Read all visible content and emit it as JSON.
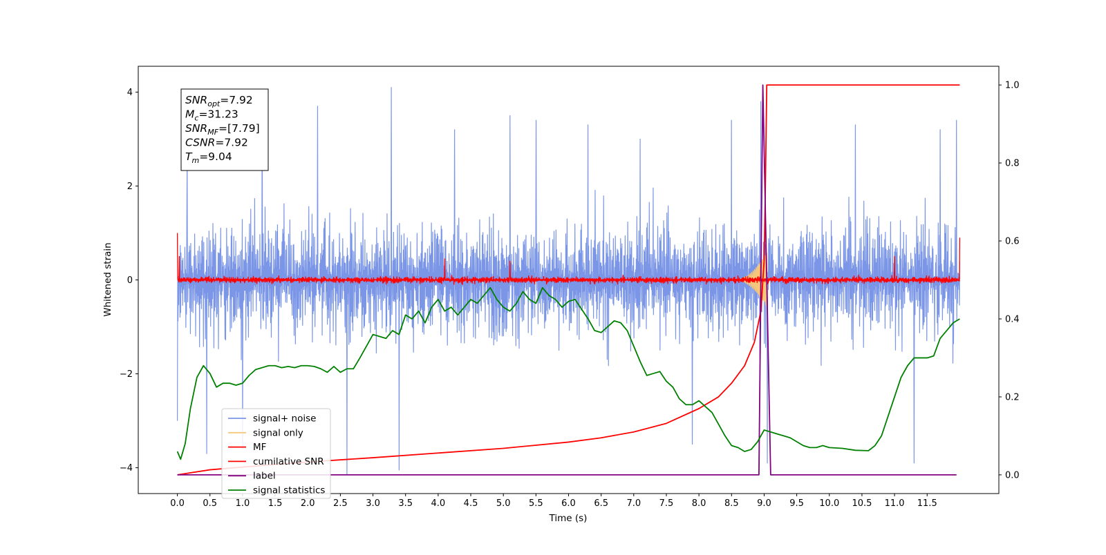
{
  "chart_data": {
    "type": "line",
    "title": "",
    "xlabel": "Time (s)",
    "ylabel": "Whitened strain",
    "ylabel_right": "",
    "xlim": [
      -0.6,
      12.6
    ],
    "ylim": [
      -4.55,
      4.55
    ],
    "ylim_right": [
      -0.048,
      1.048
    ],
    "x_ticks": [
      0.0,
      0.5,
      1.0,
      1.5,
      2.0,
      2.5,
      3.0,
      3.5,
      4.0,
      4.5,
      5.0,
      5.5,
      6.0,
      6.5,
      7.0,
      7.5,
      8.0,
      8.5,
      9.0,
      9.5,
      10.0,
      10.5,
      11.0,
      11.5
    ],
    "x_tick_labels": [
      "0.0",
      "0.5",
      "1.0",
      "1.5",
      "2.0",
      "2.5",
      "3.0",
      "3.5",
      "4.0",
      "4.5",
      "5.0",
      "5.5",
      "6.0",
      "6.5",
      "7.0",
      "7.5",
      "8.0",
      "8.5",
      "9.0",
      "9.5",
      "10.0",
      "10.5",
      "11.0",
      "11.5"
    ],
    "y_ticks": [
      -4,
      -2,
      0,
      2,
      4
    ],
    "y_tick_labels": [
      "−4",
      "−2",
      "0",
      "2",
      "4"
    ],
    "y_ticks_right": [
      0.0,
      0.2,
      0.4,
      0.6,
      0.8,
      1.0
    ],
    "y_tick_labels_right": [
      "0.0",
      "0.2",
      "0.4",
      "0.6",
      "0.8",
      "1.0"
    ],
    "grid": false,
    "legend_position": "lower-left",
    "annotation": [
      {
        "name": "SNR",
        "sub": "opt",
        "value": "=7.92"
      },
      {
        "name": "M",
        "sub": "c",
        "value": "=31.23"
      },
      {
        "name": "SNR",
        "sub": "MF",
        "value": "=[7.79]"
      },
      {
        "name": "CSNR",
        "sub": "",
        "value": "=7.92"
      },
      {
        "name": "T",
        "sub": "m",
        "value": "=9.04"
      }
    ],
    "series": [
      {
        "name": "signal+ noise",
        "axis": "left",
        "color": "#7b96e6",
        "kind": "noise",
        "x_range": [
          0.0,
          12.0
        ],
        "band": [
          -2.3,
          2.3
        ],
        "extremes": [
          [
            0.0,
            -3.0
          ],
          [
            0.15,
            2.6
          ],
          [
            0.45,
            -3.7
          ],
          [
            1.0,
            -3.6
          ],
          [
            1.3,
            3.8
          ],
          [
            2.15,
            3.7
          ],
          [
            2.6,
            -4.15
          ],
          [
            3.28,
            4.1
          ],
          [
            3.4,
            -4.05
          ],
          [
            4.25,
            3.2
          ],
          [
            5.1,
            3.5
          ],
          [
            5.5,
            3.4
          ],
          [
            6.3,
            3.3
          ],
          [
            7.1,
            3.0
          ],
          [
            7.9,
            -3.5
          ],
          [
            8.5,
            3.4
          ],
          [
            8.95,
            3.8
          ],
          [
            9.05,
            -3.9
          ],
          [
            10.4,
            3.3
          ],
          [
            11.3,
            -3.9
          ],
          [
            11.7,
            3.2
          ],
          [
            11.95,
            3.4
          ]
        ]
      },
      {
        "name": "signal only",
        "axis": "left",
        "color": "#f5c77a",
        "kind": "chirp",
        "x_range": [
          8.55,
          9.05
        ],
        "amplitude": 0.6
      },
      {
        "name": "MF",
        "axis": "left",
        "color": "#ff0000",
        "kind": "noise",
        "x_range": [
          0.0,
          12.0
        ],
        "band": [
          -0.12,
          0.12
        ],
        "extremes": [
          [
            0.0,
            1.0
          ],
          [
            0.03,
            0.5
          ],
          [
            4.1,
            0.45
          ],
          [
            5.1,
            0.4
          ],
          [
            11.0,
            0.5
          ],
          [
            12.0,
            0.9
          ],
          [
            8.95,
            0.4
          ]
        ]
      },
      {
        "name": "cumilative SNR",
        "axis": "right",
        "color": "#ff0000",
        "x": [
          0.0,
          0.5,
          1.0,
          2.0,
          3.0,
          4.0,
          5.0,
          6.0,
          6.5,
          7.0,
          7.5,
          8.0,
          8.3,
          8.5,
          8.7,
          8.85,
          8.95,
          9.0,
          9.02,
          9.04,
          9.06,
          9.1,
          10.0,
          11.0,
          12.0
        ],
        "y": [
          0.0,
          0.013,
          0.02,
          0.033,
          0.044,
          0.056,
          0.068,
          0.084,
          0.095,
          0.11,
          0.132,
          0.17,
          0.2,
          0.235,
          0.28,
          0.34,
          0.42,
          0.55,
          0.75,
          1.0,
          1.0,
          1.0,
          1.0,
          1.0,
          1.0
        ]
      },
      {
        "name": "label",
        "axis": "right",
        "color": "#800080",
        "x": [
          0.0,
          8.92,
          8.98,
          9.1,
          11.95
        ],
        "y": [
          0.0,
          0.0,
          1.0,
          0.0,
          0.0
        ]
      },
      {
        "name": "signal statistics",
        "axis": "right",
        "color": "#008000",
        "x": [
          0.0,
          0.05,
          0.12,
          0.2,
          0.3,
          0.4,
          0.5,
          0.6,
          0.7,
          0.8,
          0.9,
          1.0,
          1.1,
          1.2,
          1.3,
          1.4,
          1.5,
          1.6,
          1.7,
          1.8,
          1.9,
          2.0,
          2.1,
          2.2,
          2.3,
          2.4,
          2.5,
          2.6,
          2.7,
          2.8,
          2.9,
          3.0,
          3.1,
          3.2,
          3.3,
          3.4,
          3.5,
          3.6,
          3.7,
          3.8,
          3.9,
          4.0,
          4.1,
          4.2,
          4.3,
          4.4,
          4.5,
          4.6,
          4.7,
          4.8,
          4.9,
          5.0,
          5.1,
          5.2,
          5.3,
          5.4,
          5.5,
          5.6,
          5.7,
          5.8,
          5.9,
          6.0,
          6.1,
          6.2,
          6.3,
          6.4,
          6.5,
          6.6,
          6.7,
          6.8,
          6.9,
          7.0,
          7.1,
          7.2,
          7.3,
          7.4,
          7.5,
          7.6,
          7.7,
          7.8,
          7.9,
          8.0,
          8.1,
          8.2,
          8.3,
          8.4,
          8.5,
          8.6,
          8.7,
          8.8,
          8.9,
          9.0,
          9.1,
          9.2,
          9.3,
          9.4,
          9.5,
          9.6,
          9.7,
          9.8,
          9.9,
          10.0,
          10.2,
          10.4,
          10.6,
          10.7,
          10.8,
          10.9,
          11.0,
          11.1,
          11.2,
          11.3,
          11.4,
          11.5,
          11.6,
          11.7,
          11.8,
          11.9,
          12.0
        ],
        "y": [
          0.06,
          0.04,
          0.08,
          0.17,
          0.25,
          0.28,
          0.26,
          0.225,
          0.235,
          0.235,
          0.23,
          0.235,
          0.255,
          0.27,
          0.275,
          0.28,
          0.28,
          0.275,
          0.278,
          0.275,
          0.28,
          0.28,
          0.278,
          0.272,
          0.263,
          0.278,
          0.263,
          0.272,
          0.272,
          0.3,
          0.33,
          0.36,
          0.355,
          0.35,
          0.37,
          0.36,
          0.41,
          0.4,
          0.42,
          0.39,
          0.43,
          0.45,
          0.42,
          0.43,
          0.41,
          0.43,
          0.45,
          0.44,
          0.46,
          0.48,
          0.45,
          0.43,
          0.42,
          0.44,
          0.47,
          0.45,
          0.44,
          0.48,
          0.46,
          0.45,
          0.43,
          0.445,
          0.45,
          0.425,
          0.4,
          0.37,
          0.365,
          0.38,
          0.395,
          0.39,
          0.37,
          0.33,
          0.29,
          0.255,
          0.26,
          0.265,
          0.24,
          0.225,
          0.195,
          0.18,
          0.18,
          0.19,
          0.175,
          0.16,
          0.13,
          0.1,
          0.075,
          0.07,
          0.06,
          0.065,
          0.085,
          0.115,
          0.11,
          0.105,
          0.1,
          0.095,
          0.085,
          0.075,
          0.07,
          0.07,
          0.075,
          0.07,
          0.068,
          0.063,
          0.062,
          0.075,
          0.1,
          0.15,
          0.2,
          0.25,
          0.28,
          0.3,
          0.3,
          0.3,
          0.305,
          0.35,
          0.37,
          0.39,
          0.4
        ]
      }
    ]
  }
}
